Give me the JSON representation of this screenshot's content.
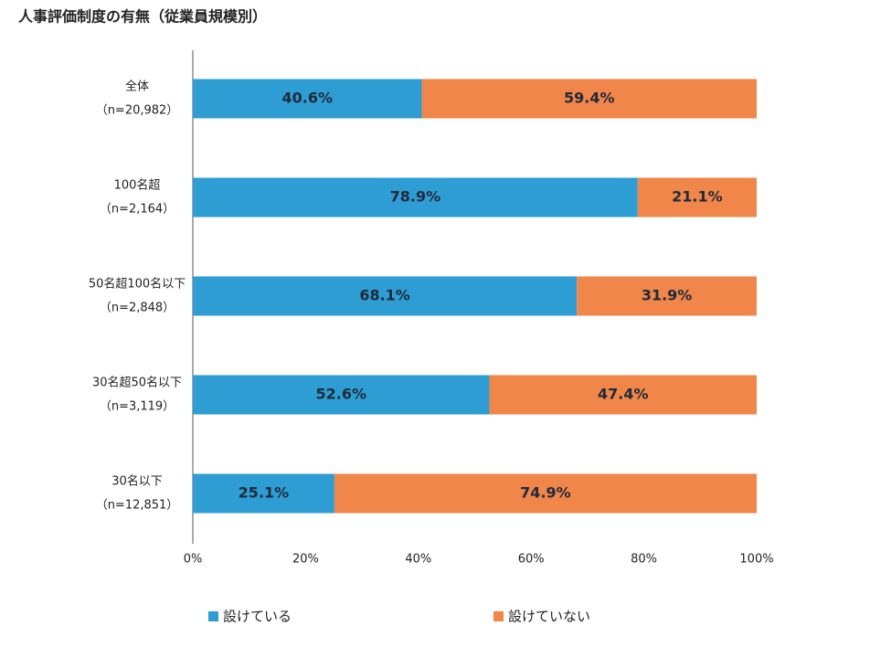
{
  "chart_data": {
    "type": "stacked-bar-horizontal",
    "title": "人事評価制度の有無（従業員規模別）",
    "categories": [
      "全体",
      "100名超",
      "50名超100名以下",
      "30名超50名以下",
      "30名以下"
    ],
    "category_sublabels": [
      "（n=20,982）",
      "（n=2,164）",
      "（n=2,848）",
      "（n=3,119）",
      "（n=12,851）"
    ],
    "series": [
      {
        "name": "設けている",
        "color": "#2e9dd3",
        "values": [
          40.6,
          78.9,
          68.1,
          52.6,
          25.1
        ],
        "value_labels": [
          "40.6%",
          "78.9%",
          "68.1%",
          "52.6%",
          "25.1%"
        ]
      },
      {
        "name": "設けていない",
        "color": "#f0864a",
        "values": [
          59.4,
          21.1,
          31.9,
          47.4,
          74.9
        ],
        "value_labels": [
          "59.4%",
          "21.1%",
          "31.9%",
          "47.4%",
          "74.9%"
        ]
      }
    ],
    "xlim": [
      0,
      100
    ],
    "xticks": [
      {
        "value": 0,
        "label": "0%"
      },
      {
        "value": 20,
        "label": "20%"
      },
      {
        "value": 40,
        "label": "40%"
      },
      {
        "value": 60,
        "label": "60%"
      },
      {
        "value": 80,
        "label": "80%"
      },
      {
        "value": 100,
        "label": "100%"
      }
    ]
  }
}
